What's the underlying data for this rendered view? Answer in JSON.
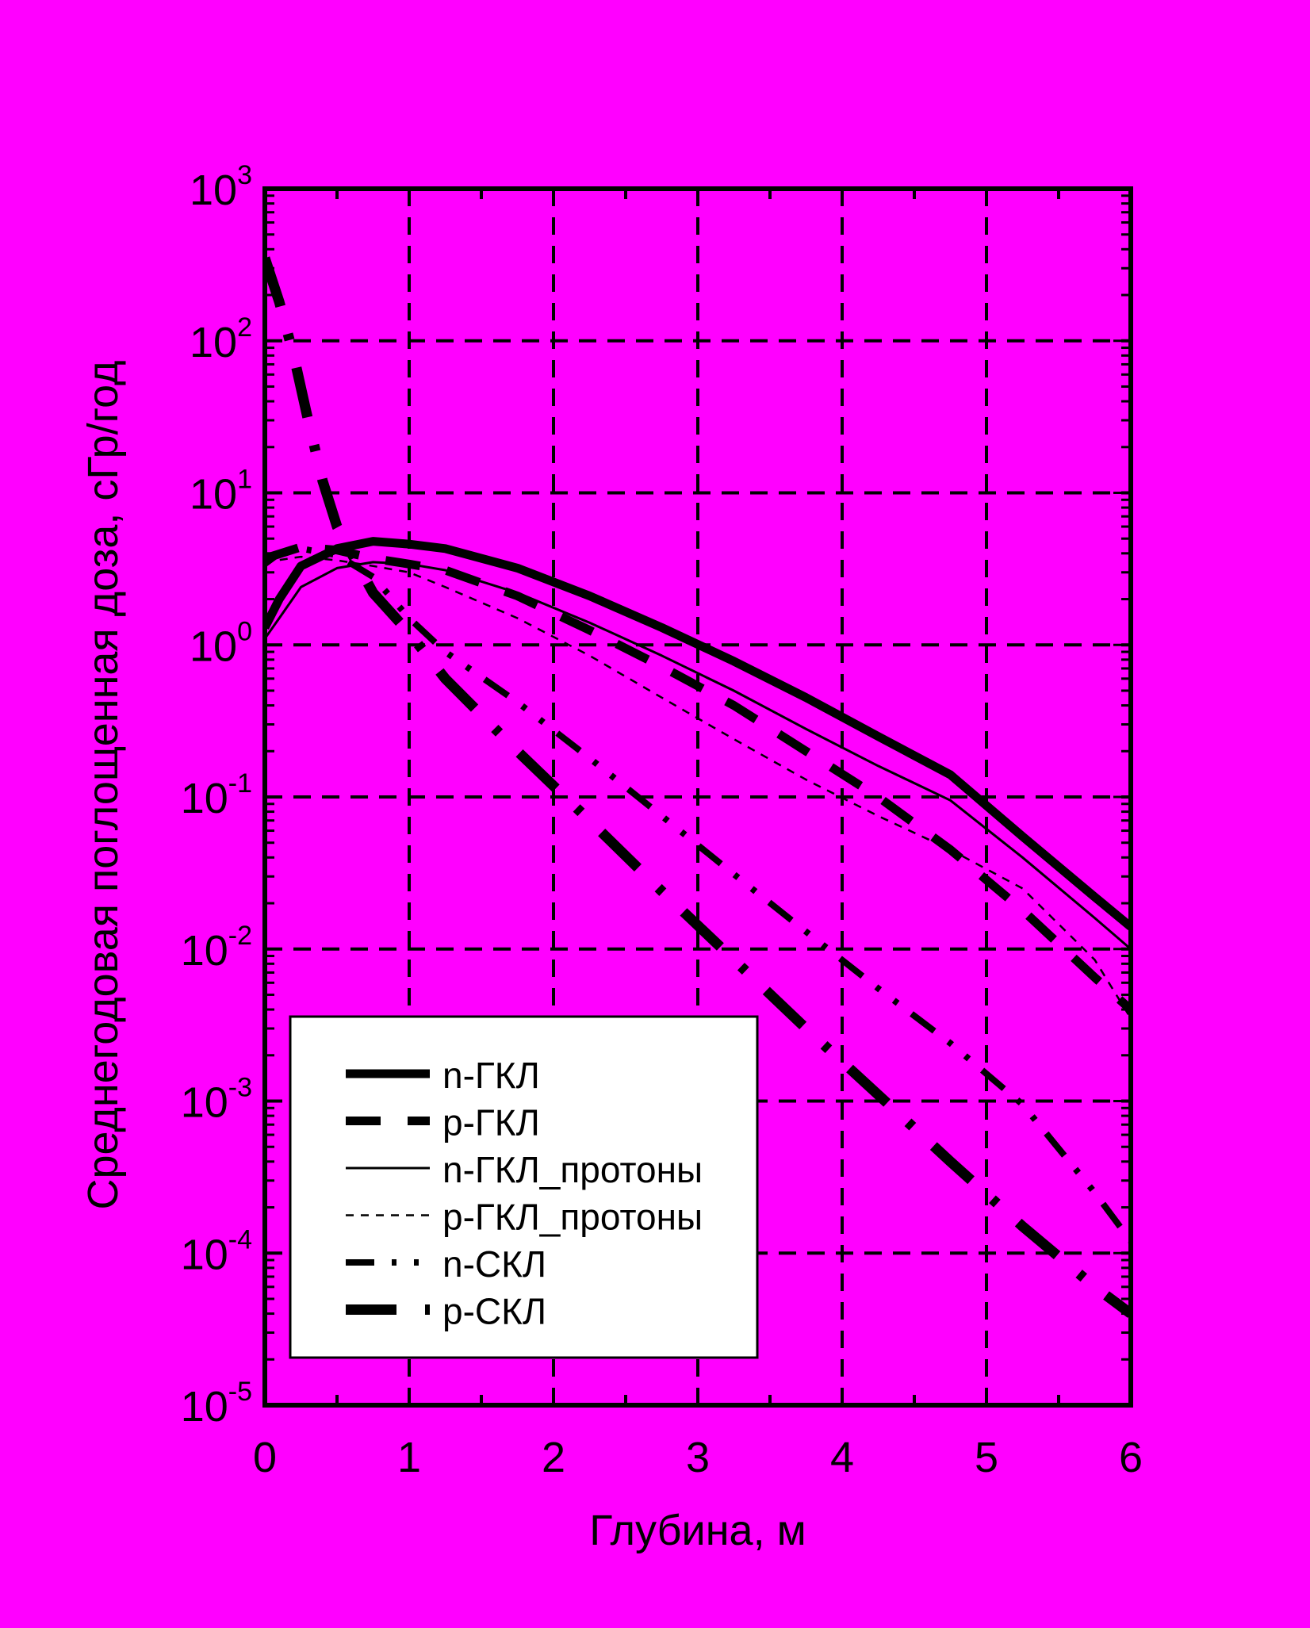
{
  "chart_data": {
    "type": "line",
    "title": "",
    "xlabel": "Глубина, м",
    "ylabel": "Среднегодовая поглощенная доза, сГр/год",
    "xlim": [
      0,
      6
    ],
    "ylim": [
      1e-05,
      1000
    ],
    "yscale": "log",
    "grid": true,
    "legend_position": "bottom-left",
    "x_ticks": [
      {
        "value": 0,
        "label": "0"
      },
      {
        "value": 1,
        "label": "1"
      },
      {
        "value": 2,
        "label": "2"
      },
      {
        "value": 3,
        "label": "3"
      },
      {
        "value": 4,
        "label": "4"
      },
      {
        "value": 5,
        "label": "5"
      },
      {
        "value": 6,
        "label": "6"
      }
    ],
    "y_ticks": [
      {
        "value": 1000,
        "base": "10",
        "exp": "3"
      },
      {
        "value": 100,
        "base": "10",
        "exp": "2"
      },
      {
        "value": 10,
        "base": "10",
        "exp": "1"
      },
      {
        "value": 1,
        "base": "10",
        "exp": "0"
      },
      {
        "value": 0.1,
        "base": "10",
        "exp": "-1"
      },
      {
        "value": 0.01,
        "base": "10",
        "exp": "-2"
      },
      {
        "value": 0.001,
        "base": "10",
        "exp": "-3"
      },
      {
        "value": 0.0001,
        "base": "10",
        "exp": "-4"
      },
      {
        "value": 1e-05,
        "base": "10",
        "exp": "-5"
      }
    ],
    "series": [
      {
        "name": "n-ГКЛ",
        "style": "thick-solid",
        "x": [
          0,
          0.1,
          0.25,
          0.5,
          0.75,
          1.0,
          1.25,
          1.75,
          2.25,
          2.75,
          3.25,
          3.75,
          4.25,
          4.75,
          5.25,
          5.75,
          6.0
        ],
        "y": [
          1.3,
          2.0,
          3.3,
          4.3,
          4.8,
          4.6,
          4.3,
          3.2,
          2.1,
          1.3,
          0.78,
          0.45,
          0.25,
          0.14,
          0.055,
          0.022,
          0.014
        ]
      },
      {
        "name": "p-ГКЛ",
        "style": "thick-dash",
        "x": [
          0,
          0.25,
          0.5,
          0.75,
          1.0,
          1.25,
          1.75,
          2.25,
          2.75,
          3.25,
          3.75,
          4.25,
          4.75,
          5.25,
          5.75,
          6.0
        ],
        "y": [
          3.7,
          4.4,
          4.2,
          3.7,
          3.4,
          3.1,
          2.1,
          1.25,
          0.72,
          0.4,
          0.2,
          0.1,
          0.045,
          0.018,
          0.0065,
          0.004
        ]
      },
      {
        "name": "n-ГКЛ_протоны",
        "style": "thin-solid",
        "x": [
          0,
          0.1,
          0.25,
          0.5,
          0.75,
          1.0,
          1.25,
          1.75,
          2.25,
          2.75,
          3.25,
          3.75,
          4.25,
          4.75,
          5.25,
          5.75,
          6.0
        ],
        "y": [
          1.1,
          1.5,
          2.4,
          3.2,
          3.5,
          3.4,
          3.1,
          2.2,
          1.4,
          0.85,
          0.5,
          0.28,
          0.16,
          0.095,
          0.04,
          0.016,
          0.01
        ]
      },
      {
        "name": "p-ГКЛ_протоны",
        "style": "thin-dash",
        "x": [
          0,
          0.25,
          0.5,
          0.75,
          1.0,
          1.25,
          1.75,
          2.25,
          2.75,
          3.25,
          3.75,
          4.25,
          4.75,
          5.25,
          5.75,
          6.0
        ],
        "y": [
          3.5,
          3.8,
          3.6,
          3.3,
          3.0,
          2.4,
          1.5,
          0.85,
          0.45,
          0.24,
          0.13,
          0.075,
          0.045,
          0.025,
          0.0085,
          0.0035
        ]
      },
      {
        "name": "n-СКЛ",
        "style": "dash-dot-dot",
        "x": [
          0,
          0.1,
          0.25,
          0.5,
          0.75,
          1.0,
          1.25,
          1.75,
          2.25,
          2.75,
          3.25,
          3.75,
          4.25,
          4.75,
          5.25,
          5.75,
          6.0
        ],
        "y": [
          3.4,
          4.0,
          4.3,
          3.9,
          2.8,
          1.5,
          0.9,
          0.42,
          0.18,
          0.075,
          0.031,
          0.013,
          0.0055,
          0.0024,
          0.00095,
          0.00025,
          0.00012
        ]
      },
      {
        "name": "p-СКЛ",
        "style": "thick-dash-dot",
        "x": [
          0,
          0.1,
          0.2,
          0.3,
          0.4,
          0.5,
          0.6,
          0.75,
          1.0,
          1.25,
          1.75,
          2.25,
          2.75,
          3.25,
          3.75,
          4.25,
          4.75,
          5.25,
          5.75,
          6.0
        ],
        "y": [
          350,
          180,
          80,
          30,
          12,
          6,
          4,
          2.2,
          1.2,
          0.6,
          0.2,
          0.07,
          0.024,
          0.0085,
          0.003,
          0.0011,
          0.0004,
          0.00015,
          6e-05,
          4e-05
        ]
      }
    ]
  }
}
